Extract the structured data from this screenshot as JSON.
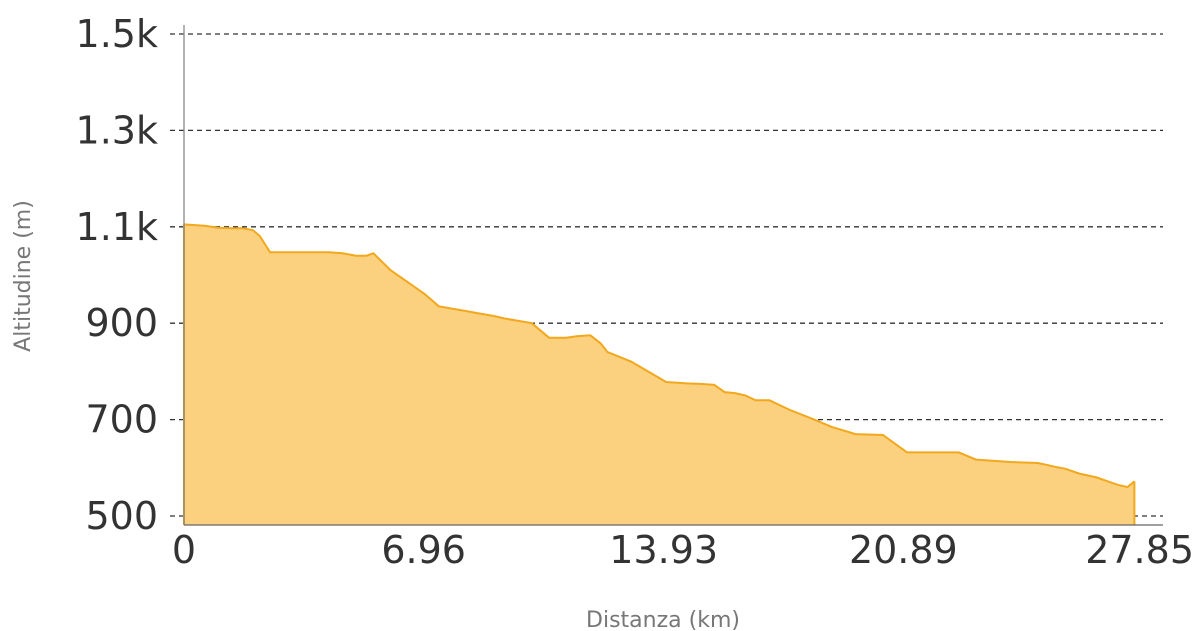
{
  "chart_data": {
    "type": "area",
    "title": "",
    "xlabel": "Distanza (km)",
    "ylabel": "Altitudine (m)",
    "xlim": [
      0,
      27.85
    ],
    "ylim": [
      480,
      1510
    ],
    "x_ticks": [
      0,
      6.96,
      13.93,
      20.89,
      27.85
    ],
    "x_tick_labels": [
      "0",
      "6.96",
      "13.93",
      "20.89",
      "27.85"
    ],
    "y_ticks": [
      500,
      700,
      900,
      1100,
      1300,
      1500
    ],
    "y_tick_labels": [
      "500",
      "700",
      "900",
      "1.1k",
      "1.3k",
      "1.5k"
    ],
    "grid": "horizontal-dashed",
    "legend": "none",
    "colors": {
      "fill": "#FBD07E",
      "line": "#F2A81D",
      "grid": "#333333",
      "axis": "#888888"
    },
    "series": [
      {
        "x": [
          0,
          0.2,
          0.6,
          1.0,
          1.4,
          1.7,
          2.0,
          2.2,
          2.5,
          3.3,
          4.2,
          4.6,
          5.0,
          5.3,
          5.5,
          6.0,
          6.5,
          7.0,
          7.4,
          8.2,
          8.6,
          9.0,
          9.3,
          10.1,
          10.6,
          10.9,
          11.1,
          11.4,
          11.8,
          12.1,
          12.3,
          13.0,
          14.0,
          14.6,
          15.0,
          15.4,
          15.7,
          16.0,
          16.3,
          16.6,
          17.0,
          17.6,
          18.3,
          18.8,
          19.5,
          20.3,
          21.0,
          21.5,
          22.0,
          22.5,
          23.0,
          24.0,
          24.8,
          25.3,
          25.6,
          26.0,
          26.5,
          27.1,
          27.4,
          27.6
        ],
        "values": [
          1105,
          1104,
          1102,
          1098,
          1097,
          1097,
          1093,
          1081,
          1047,
          1047,
          1047,
          1045,
          1040,
          1040,
          1045,
          1010,
          985,
          960,
          935,
          925,
          920,
          915,
          910,
          900,
          870,
          870,
          870,
          873,
          875,
          858,
          840,
          820,
          778,
          775,
          774,
          772,
          757,
          755,
          750,
          740,
          740,
          720,
          700,
          685,
          670,
          668,
          632,
          632,
          632,
          632,
          617,
          612,
          610,
          602,
          598,
          588,
          580,
          565,
          560,
          572
        ]
      }
    ]
  }
}
